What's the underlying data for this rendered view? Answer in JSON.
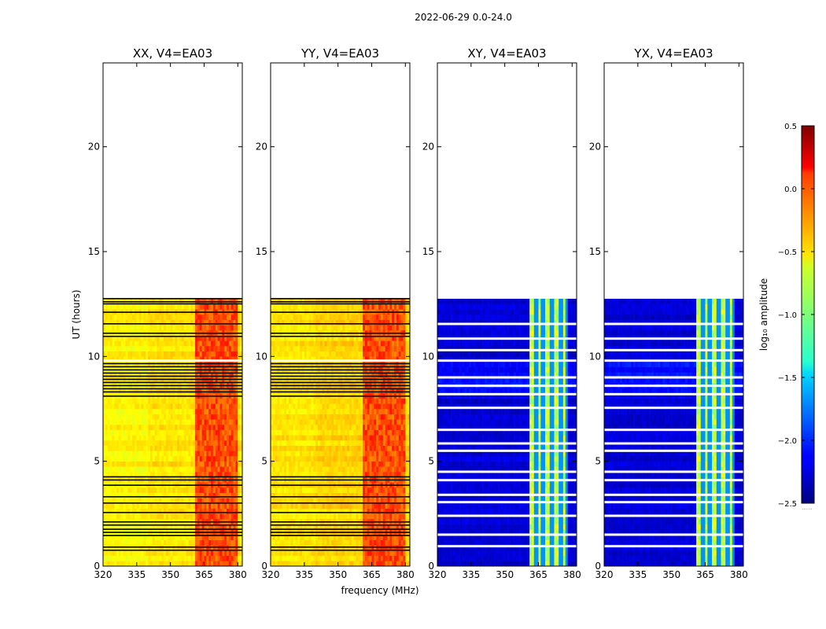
{
  "figure": {
    "suptitle": "2022-06-29 0.0-24.0",
    "shared_xlabel": "frequency (MHz)",
    "shared_ylabel": "UT (hours)"
  },
  "colorbar": {
    "label": "log₁₀ amplitude",
    "range": [
      -2.5,
      0.5
    ],
    "ticks": [
      0.5,
      0.0,
      -0.5,
      -1.0,
      -1.5,
      -2.0,
      -2.5
    ],
    "tick_labels": [
      "0.5",
      "0.0",
      "−0.5",
      "−1.0",
      "−1.5",
      "−2.0",
      "−2.5"
    ],
    "below_label": "......",
    "colormap": "jet"
  },
  "colors": {
    "missing": "#000000",
    "gap": "#ffffff"
  },
  "chart_data": [
    {
      "type": "heatmap",
      "title": "XX, V4=EA03",
      "panel_id": "xx",
      "xlabel": "",
      "ylabel": "UT (hours)",
      "xlim": [
        320,
        382
      ],
      "ylim": [
        0,
        24
      ],
      "x_ticks": [
        320,
        335,
        350,
        365,
        380
      ],
      "x_tick_labels": [
        "320",
        "335",
        "350",
        "365",
        "380"
      ],
      "y_ticks": [
        0,
        5,
        10,
        15,
        20
      ],
      "y_tick_labels": [
        "0",
        "5",
        "10",
        "15",
        "20"
      ],
      "data_end_hour": 12.75,
      "baseline_log_amp": -0.55,
      "band_log_amp": -0.1,
      "band_mhz": [
        361,
        380
      ],
      "flagged_rows_hours": [
        0.75,
        0.9,
        1.45,
        1.6,
        1.75,
        1.95,
        2.1,
        2.55,
        3.0,
        3.3,
        3.85,
        4.1,
        4.25,
        8.1,
        8.3,
        8.45,
        8.6,
        8.75,
        8.9,
        9.05,
        9.2,
        9.35,
        9.5,
        9.65,
        10.95,
        11.1,
        11.55,
        12.1,
        12.5,
        12.6,
        12.75
      ],
      "gap_rows_hours": [
        9.8
      ]
    },
    {
      "type": "heatmap",
      "title": "YY, V4=EA03",
      "panel_id": "yy",
      "xlabel": "frequency (MHz)",
      "ylabel": "",
      "xlim": [
        320,
        382
      ],
      "ylim": [
        0,
        24
      ],
      "x_ticks": [
        320,
        335,
        350,
        365,
        380
      ],
      "x_tick_labels": [
        "320",
        "335",
        "350",
        "365",
        "380"
      ],
      "y_ticks": [
        0,
        5,
        10,
        15,
        20
      ],
      "y_tick_labels": [
        "0",
        "5",
        "10",
        "15",
        "20"
      ],
      "data_end_hour": 12.75,
      "baseline_log_amp": -0.5,
      "band_log_amp": -0.1,
      "band_mhz": [
        361,
        380
      ],
      "flagged_rows_hours": [
        0.75,
        0.9,
        1.45,
        1.6,
        1.75,
        1.95,
        2.1,
        2.55,
        3.0,
        3.3,
        3.85,
        4.1,
        4.25,
        8.1,
        8.3,
        8.45,
        8.6,
        8.75,
        8.9,
        9.05,
        9.2,
        9.35,
        9.5,
        9.65,
        10.95,
        11.1,
        11.55,
        12.1,
        12.5,
        12.6,
        12.75
      ],
      "gap_rows_hours": [
        9.8
      ]
    },
    {
      "type": "heatmap",
      "title": "XY, V4=EA03",
      "panel_id": "xy",
      "xlabel": "",
      "ylabel": "",
      "xlim": [
        320,
        382
      ],
      "ylim": [
        0,
        24
      ],
      "x_ticks": [
        320,
        335,
        350,
        365,
        380
      ],
      "x_tick_labels": [
        "320",
        "335",
        "350",
        "365",
        "380"
      ],
      "y_ticks": [
        0,
        5,
        10,
        15,
        20
      ],
      "y_tick_labels": [
        "0",
        "5",
        "10",
        "15",
        "20"
      ],
      "data_end_hour": 12.75,
      "baseline_log_amp": -2.25,
      "band_log_amp": -0.8,
      "band_mhz": [
        361,
        378
      ],
      "gap_rows_hours": [
        0.95,
        1.5,
        2.4,
        3.05,
        3.4,
        4.1,
        4.5,
        5.5,
        5.85,
        6.5,
        7.55,
        8.2,
        8.6,
        9.0,
        9.8,
        10.3,
        10.85,
        11.55
      ]
    },
    {
      "type": "heatmap",
      "title": "YX, V4=EA03",
      "panel_id": "yx",
      "xlabel": "",
      "ylabel": "",
      "xlim": [
        320,
        382
      ],
      "ylim": [
        0,
        24
      ],
      "x_ticks": [
        320,
        335,
        350,
        365,
        380
      ],
      "x_tick_labels": [
        "320",
        "335",
        "350",
        "365",
        "380"
      ],
      "y_ticks": [
        0,
        5,
        10,
        15,
        20
      ],
      "y_tick_labels": [
        "0",
        "5",
        "10",
        "15",
        "20"
      ],
      "data_end_hour": 12.75,
      "baseline_log_amp": -2.25,
      "band_log_amp": -0.8,
      "band_mhz": [
        361,
        378
      ],
      "gap_rows_hours": [
        0.95,
        1.5,
        2.4,
        3.05,
        3.4,
        4.1,
        4.5,
        5.5,
        5.85,
        6.5,
        7.55,
        8.2,
        8.6,
        9.0,
        9.8,
        10.3,
        10.85,
        11.55
      ]
    }
  ]
}
